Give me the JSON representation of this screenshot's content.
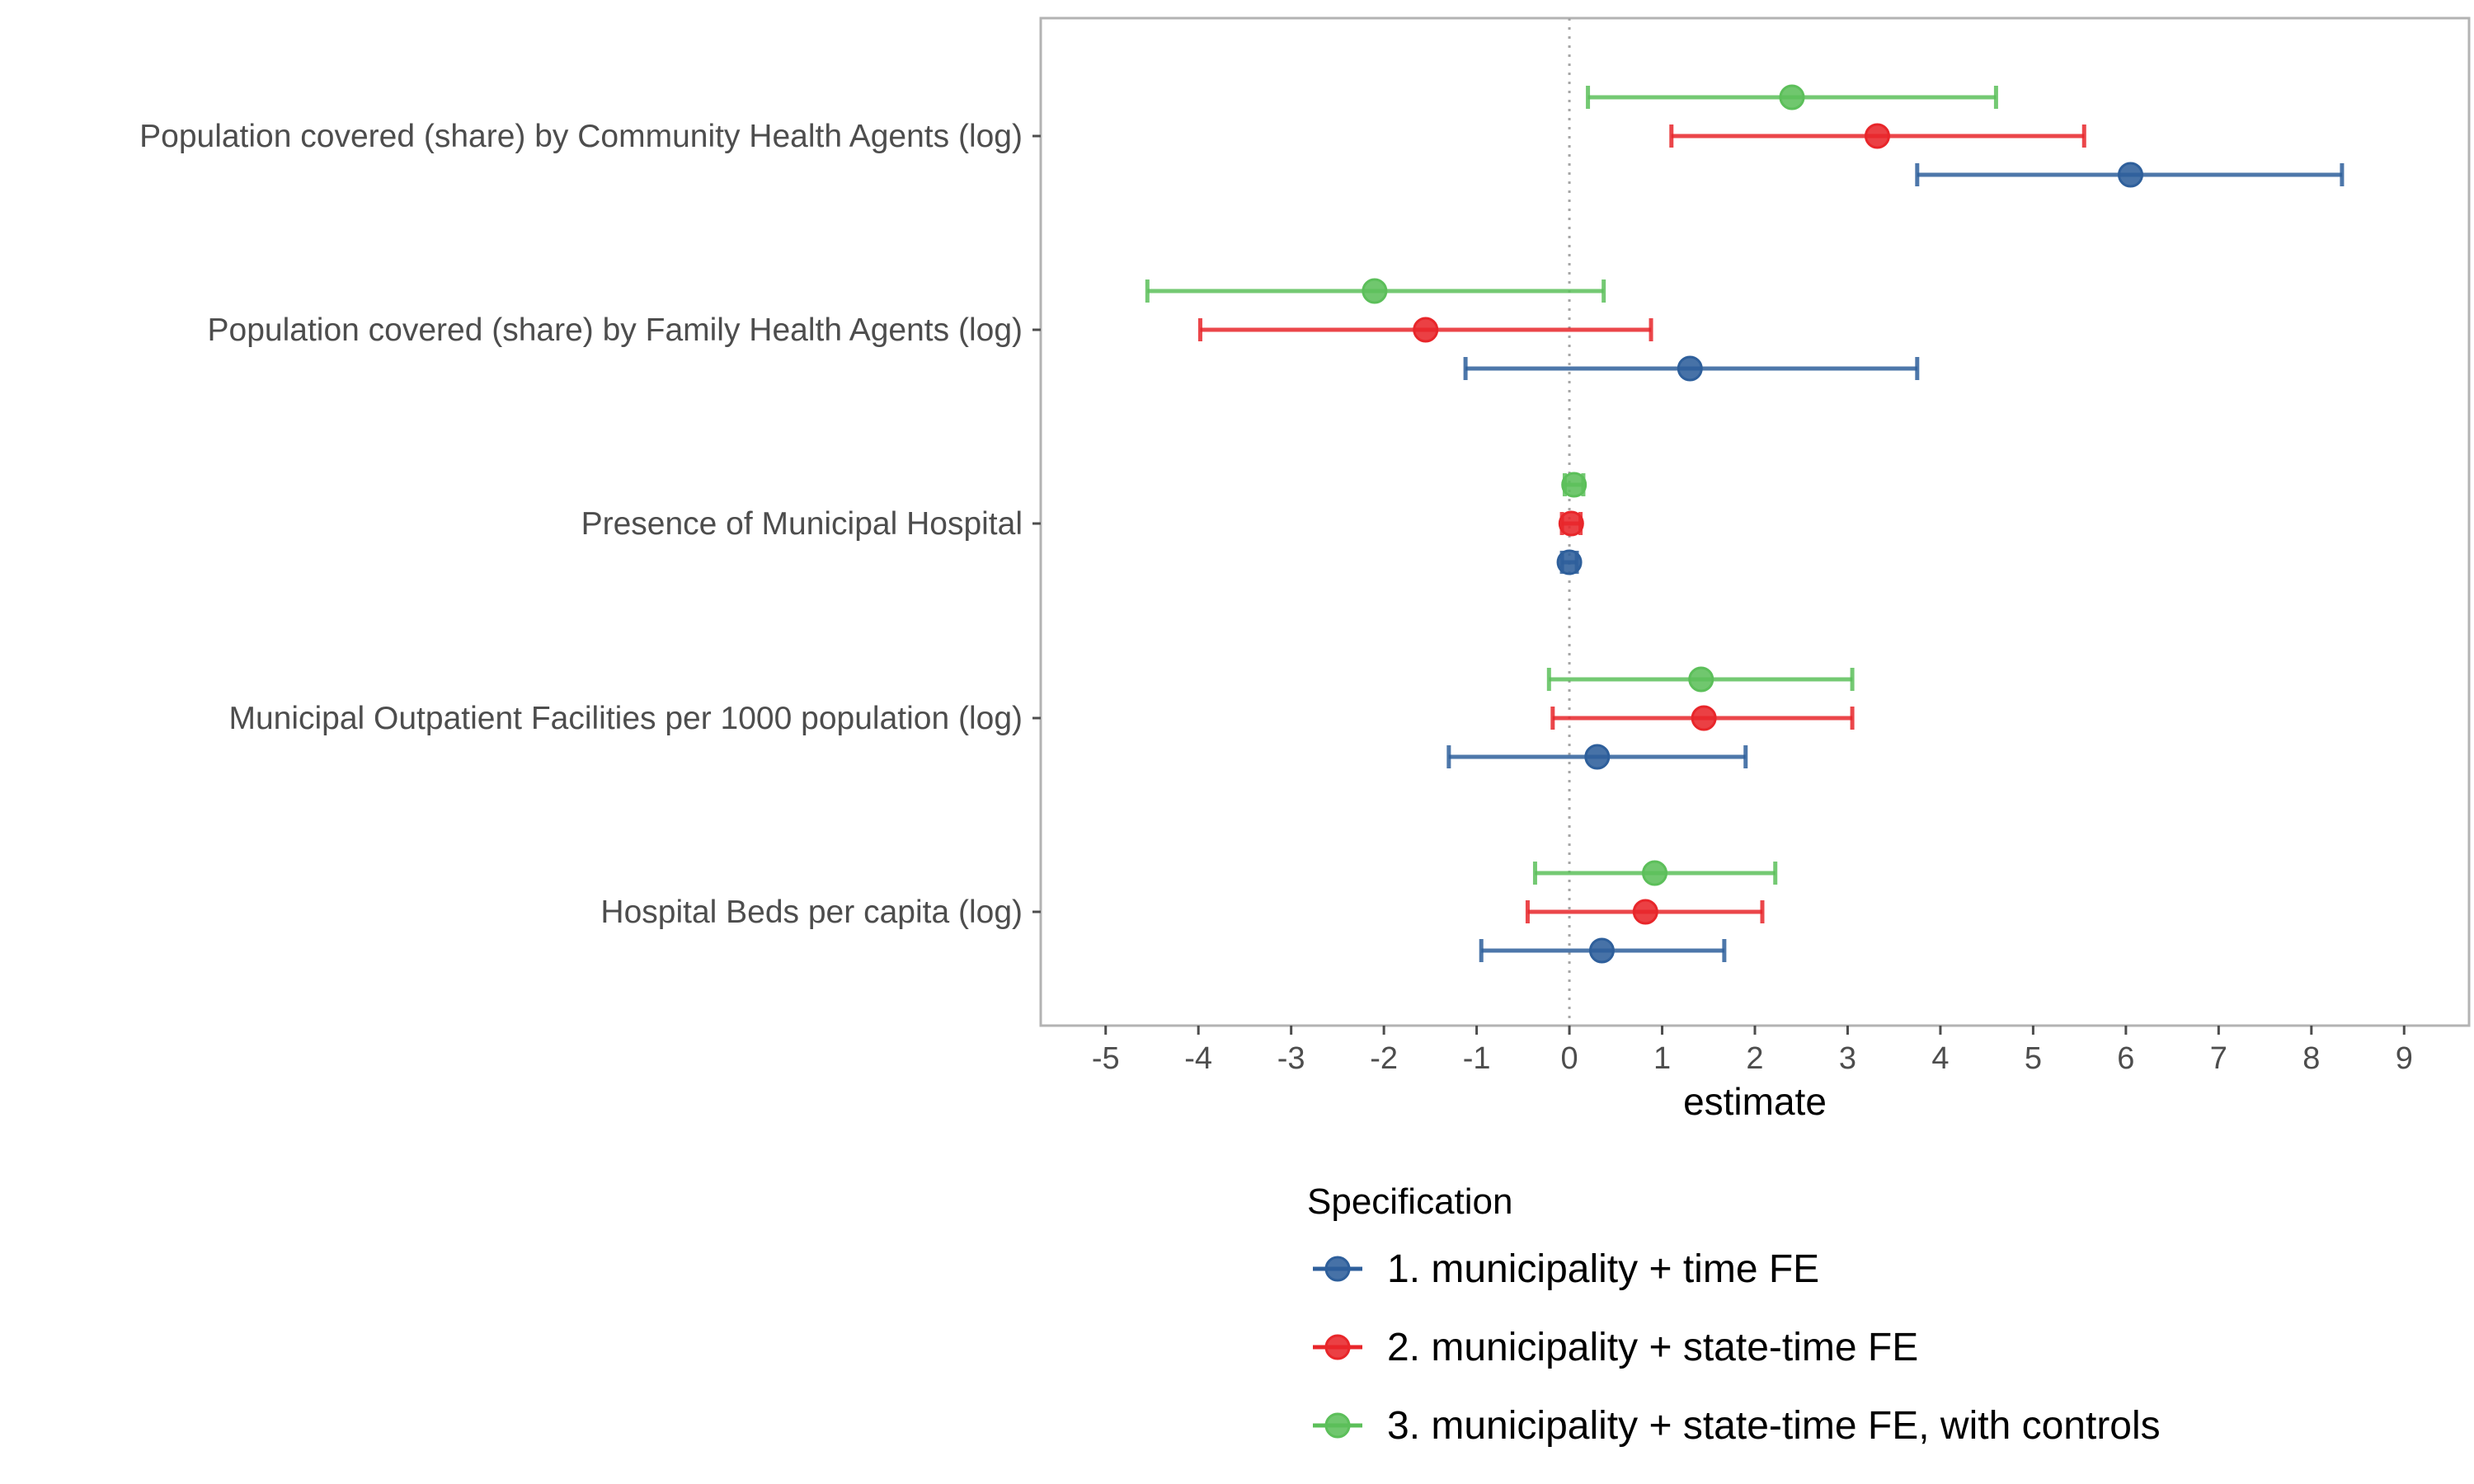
{
  "chart_data": {
    "type": "scatter",
    "subtype": "coefficient-plot-with-error-bars",
    "xlabel": "estimate",
    "xlim": [
      -5.7,
      9.7
    ],
    "xticks": [
      -5,
      -4,
      -3,
      -2,
      -1,
      0,
      1,
      2,
      3,
      4,
      5,
      6,
      7,
      8,
      9
    ],
    "reference_line": 0,
    "grid": false,
    "categories": [
      "Population covered (share) by Community Health Agents (log)",
      "Population covered (share) by Family Health Agents (log)",
      "Presence of Municipal Hospital",
      "Municipal Outpatient Facilities per 1000 population (log)",
      "Hospital Beds per capita (log)"
    ],
    "legend": {
      "title": "Specification",
      "position": "bottom"
    },
    "series": [
      {
        "name": "1. municipality + time FE",
        "color": "#2e5f9b",
        "estimate": [
          6.05,
          1.3,
          0.0,
          0.3,
          0.35
        ],
        "lower": [
          3.75,
          -1.12,
          -0.08,
          -1.3,
          -0.95
        ],
        "upper": [
          8.33,
          3.75,
          0.08,
          1.9,
          1.67
        ]
      },
      {
        "name": "2. municipality + state-time FE",
        "color": "#e8262a",
        "estimate": [
          3.32,
          -1.55,
          0.02,
          1.45,
          0.82
        ],
        "lower": [
          1.1,
          -3.98,
          -0.08,
          -0.18,
          -0.45
        ],
        "upper": [
          5.55,
          0.88,
          0.12,
          3.05,
          2.08
        ]
      },
      {
        "name": "3. municipality + state-time FE, with controls",
        "color": "#5cbf5a",
        "estimate": [
          2.4,
          -2.1,
          0.05,
          1.42,
          0.92
        ],
        "lower": [
          0.2,
          -4.55,
          -0.05,
          -0.22,
          -0.37
        ],
        "upper": [
          4.6,
          0.37,
          0.15,
          3.05,
          2.22
        ]
      }
    ]
  }
}
